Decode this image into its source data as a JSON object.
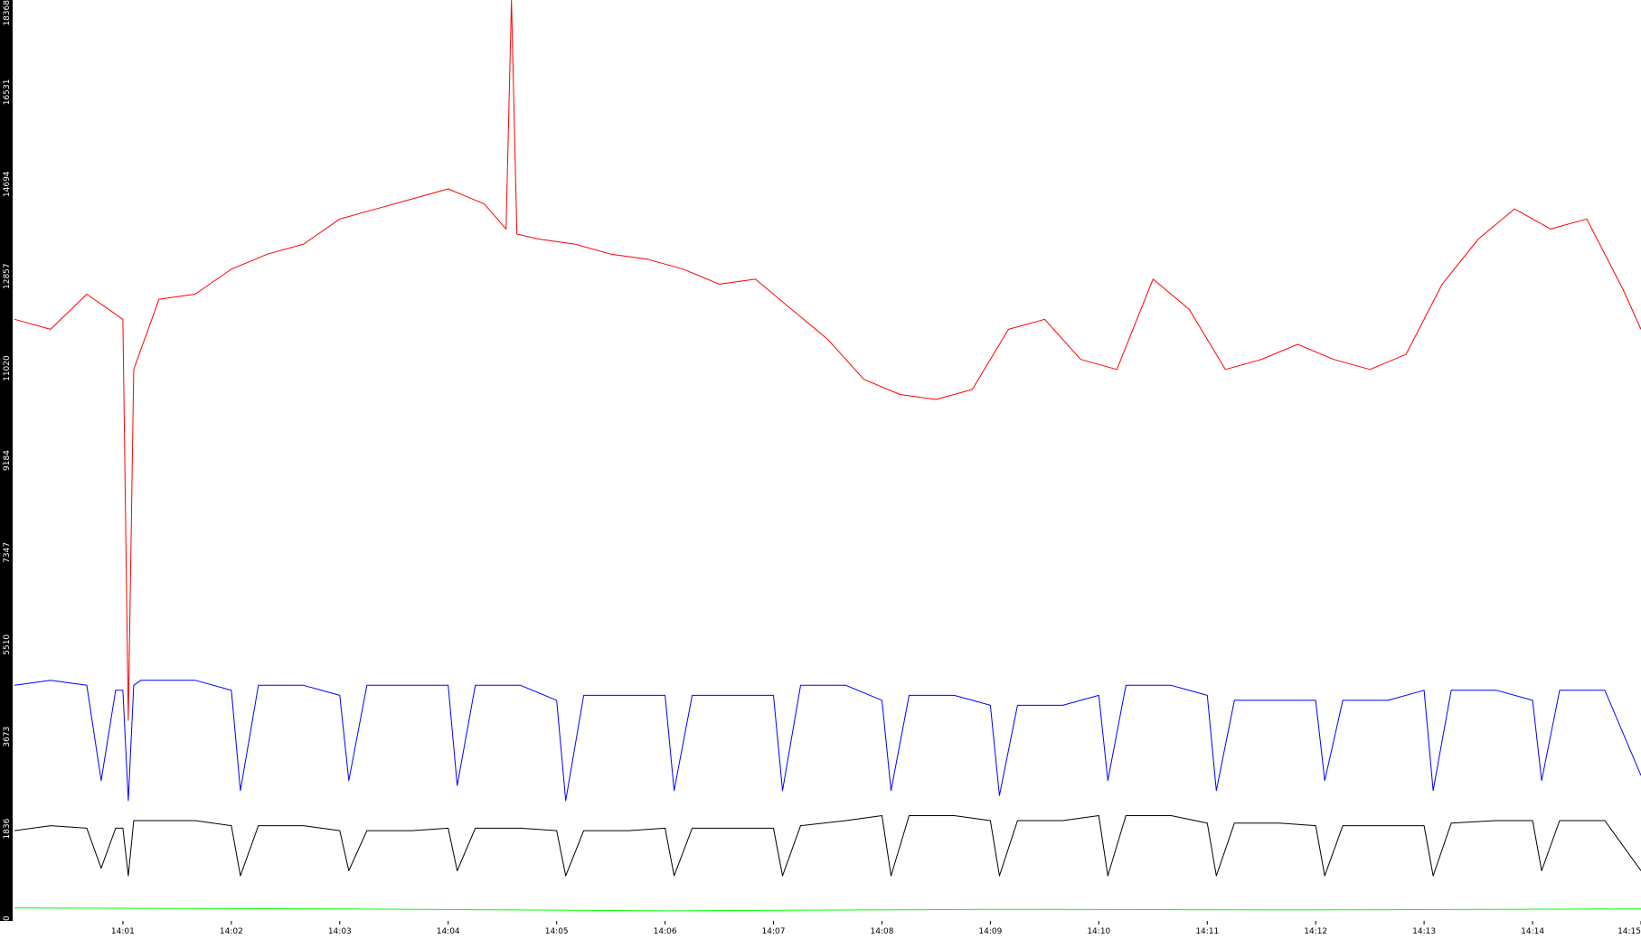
{
  "chart_data": {
    "type": "line",
    "title": "",
    "xlabel": "",
    "ylabel": "",
    "grid": false,
    "legend": "none",
    "ylim": [
      0,
      18368
    ],
    "xlim": [
      "14:00:00",
      "14:15:00"
    ],
    "y_ticks": [
      "0",
      "1836",
      "3673",
      "5510",
      "7347",
      "9184",
      "11020",
      "12857",
      "14694",
      "16531",
      "18368"
    ],
    "x_ticks": [
      "14:01",
      "14:02",
      "14:03",
      "14:04",
      "14:05",
      "14:06",
      "14:07",
      "14:08",
      "14:09",
      "14:10",
      "14:11",
      "14:12",
      "14:13",
      "14:14",
      "14:15"
    ],
    "axis_background": "#000000",
    "series": [
      {
        "color": "#ff0000",
        "time": [
          "14:00:00",
          "14:00:20",
          "14:00:40",
          "14:01:00",
          "14:01:03",
          "14:01:06",
          "14:01:20",
          "14:01:40",
          "14:02:00",
          "14:02:20",
          "14:02:40",
          "14:03:00",
          "14:03:20",
          "14:03:40",
          "14:04:00",
          "14:04:20",
          "14:04:32",
          "14:04:35",
          "14:04:38",
          "14:04:50",
          "14:05:10",
          "14:05:30",
          "14:05:50",
          "14:06:10",
          "14:06:30",
          "14:06:50",
          "14:07:10",
          "14:07:30",
          "14:07:50",
          "14:08:10",
          "14:08:30",
          "14:08:50",
          "14:09:10",
          "14:09:30",
          "14:09:50",
          "14:10:10",
          "14:10:30",
          "14:10:50",
          "14:11:10",
          "14:11:30",
          "14:11:50",
          "14:12:10",
          "14:12:30",
          "14:12:50",
          "14:13:10",
          "14:13:30",
          "14:13:50",
          "14:14:10",
          "14:14:30",
          "14:14:50",
          "14:15:00"
        ],
        "values": [
          12000,
          11800,
          12500,
          12000,
          4000,
          11000,
          12400,
          12500,
          13000,
          13300,
          13500,
          14000,
          14200,
          14400,
          14600,
          14300,
          13800,
          18368,
          13700,
          13600,
          13500,
          13300,
          13200,
          13000,
          12700,
          12800,
          12200,
          11600,
          10800,
          10500,
          10400,
          10600,
          11800,
          12000,
          11200,
          11000,
          12800,
          12200,
          11000,
          11200,
          11500,
          11200,
          11000,
          11300,
          12700,
          13600,
          14200,
          13800,
          14000,
          12600,
          11800
        ]
      },
      {
        "color": "#0000ff",
        "time": [
          "14:00:00",
          "14:00:20",
          "14:00:40",
          "14:00:48",
          "14:00:56",
          "14:01:00",
          "14:01:03",
          "14:01:06",
          "14:01:10",
          "14:01:40",
          "14:02:00",
          "14:02:05",
          "14:02:15",
          "14:02:40",
          "14:03:00",
          "14:03:05",
          "14:03:15",
          "14:03:40",
          "14:04:00",
          "14:04:05",
          "14:04:15",
          "14:04:40",
          "14:05:00",
          "14:05:05",
          "14:05:15",
          "14:05:40",
          "14:06:00",
          "14:06:05",
          "14:06:15",
          "14:06:40",
          "14:07:00",
          "14:07:05",
          "14:07:15",
          "14:07:40",
          "14:08:00",
          "14:08:05",
          "14:08:15",
          "14:08:40",
          "14:09:00",
          "14:09:05",
          "14:09:15",
          "14:09:40",
          "14:10:00",
          "14:10:05",
          "14:10:15",
          "14:10:40",
          "14:11:00",
          "14:11:05",
          "14:11:15",
          "14:11:40",
          "14:12:00",
          "14:12:05",
          "14:12:15",
          "14:12:40",
          "14:13:00",
          "14:13:05",
          "14:13:15",
          "14:13:40",
          "14:14:00",
          "14:14:05",
          "14:14:15",
          "14:14:40",
          "14:15:00"
        ],
        "values": [
          4700,
          4800,
          4700,
          2800,
          4600,
          4600,
          2400,
          4700,
          4800,
          4800,
          4600,
          2600,
          4700,
          4700,
          4500,
          2800,
          4700,
          4700,
          4700,
          2700,
          4700,
          4700,
          4400,
          2400,
          4500,
          4500,
          4500,
          2600,
          4500,
          4500,
          4500,
          2600,
          4700,
          4700,
          4400,
          2600,
          4500,
          4500,
          4300,
          2500,
          4300,
          4300,
          4500,
          2800,
          4700,
          4700,
          4500,
          2600,
          4400,
          4400,
          4400,
          2800,
          4400,
          4400,
          4600,
          2600,
          4600,
          4600,
          4400,
          2800,
          4600,
          4600,
          2900
        ]
      },
      {
        "color": "#000000",
        "time": [
          "14:00:00",
          "14:00:20",
          "14:00:40",
          "14:00:48",
          "14:00:56",
          "14:01:00",
          "14:01:03",
          "14:01:06",
          "14:01:10",
          "14:01:40",
          "14:02:00",
          "14:02:05",
          "14:02:15",
          "14:02:40",
          "14:03:00",
          "14:03:05",
          "14:03:15",
          "14:03:40",
          "14:04:00",
          "14:04:05",
          "14:04:15",
          "14:04:40",
          "14:05:00",
          "14:05:05",
          "14:05:15",
          "14:05:40",
          "14:06:00",
          "14:06:05",
          "14:06:15",
          "14:06:40",
          "14:07:00",
          "14:07:05",
          "14:07:15",
          "14:07:40",
          "14:08:00",
          "14:08:05",
          "14:08:15",
          "14:08:40",
          "14:09:00",
          "14:09:05",
          "14:09:15",
          "14:09:40",
          "14:10:00",
          "14:10:05",
          "14:10:15",
          "14:10:40",
          "14:11:00",
          "14:11:05",
          "14:11:15",
          "14:11:40",
          "14:12:00",
          "14:12:05",
          "14:12:15",
          "14:12:40",
          "14:13:00",
          "14:13:05",
          "14:13:15",
          "14:13:40",
          "14:14:00",
          "14:14:05",
          "14:14:15",
          "14:14:40",
          "14:15:00"
        ],
        "values": [
          1800,
          1900,
          1850,
          1050,
          1850,
          1850,
          900,
          2000,
          2000,
          2000,
          1900,
          900,
          1900,
          1900,
          1800,
          1000,
          1800,
          1800,
          1850,
          1000,
          1850,
          1850,
          1800,
          900,
          1800,
          1800,
          1850,
          900,
          1850,
          1850,
          1850,
          900,
          1900,
          2000,
          2100,
          900,
          2100,
          2100,
          2000,
          900,
          2000,
          2000,
          2100,
          900,
          2100,
          2100,
          1950,
          900,
          1950,
          1950,
          1900,
          900,
          1900,
          1900,
          1900,
          900,
          1950,
          2000,
          2000,
          1000,
          2000,
          2000,
          1000
        ]
      },
      {
        "color": "#00ff00",
        "time": [
          "14:00:00",
          "14:03:00",
          "14:06:00",
          "14:09:00",
          "14:12:00",
          "14:15:00"
        ],
        "values": [
          260,
          240,
          200,
          230,
          220,
          240
        ]
      }
    ]
  }
}
